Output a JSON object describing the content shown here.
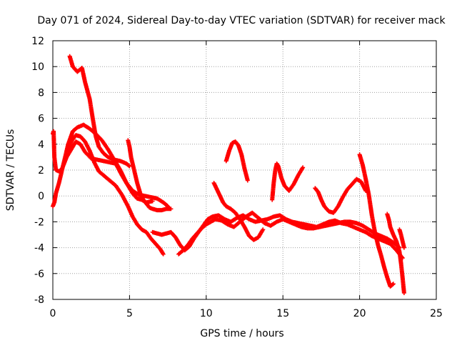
{
  "chart_data": {
    "type": "scatter",
    "title": "Day 071 of 2024, Sidereal Day-to-day VTEC variation (SDTVAR) for receiver mack",
    "xlabel": "GPS time / hours",
    "ylabel": "SDTVAR / TECUs",
    "xlim": [
      0,
      25
    ],
    "ylim": [
      -8,
      12
    ],
    "xticks": [
      0,
      5,
      10,
      15,
      20,
      25
    ],
    "yticks": [
      -8,
      -6,
      -4,
      -2,
      0,
      2,
      4,
      6,
      8,
      10,
      12
    ],
    "xtick_labels": [
      "0",
      "5",
      "10",
      "15",
      "20",
      "25"
    ],
    "ytick_labels": [
      "-8",
      "-6",
      "-4",
      "-2",
      "0",
      "2",
      "4",
      "6",
      "8",
      "10",
      "12"
    ],
    "grid": true,
    "marker": "+",
    "color": "#ff0000",
    "series": [
      {
        "name": "trace-1",
        "x": [
          1.1,
          1.3,
          1.6,
          1.9,
          2.1,
          2.4,
          2.6,
          2.8,
          3.0,
          3.3,
          3.6,
          4.0,
          4.4,
          4.8,
          5.0
        ],
        "y": [
          10.8,
          10.0,
          9.6,
          9.9,
          8.8,
          7.5,
          6.0,
          4.6,
          3.8,
          3.3,
          3.0,
          2.8,
          2.7,
          2.5,
          2.3
        ]
      },
      {
        "name": "trace-2",
        "x": [
          0.0,
          0.1,
          0.2,
          0.4,
          0.6,
          0.8,
          1.0,
          1.3,
          1.6,
          2.0,
          2.4,
          2.8,
          3.2,
          3.6,
          4.0,
          4.4,
          4.8,
          5.2,
          5.6,
          6.0,
          6.4,
          6.8,
          7.2,
          7.5
        ],
        "y": [
          -0.8,
          -0.5,
          0.2,
          1.0,
          2.0,
          3.0,
          4.0,
          5.0,
          5.3,
          5.5,
          5.2,
          4.8,
          4.3,
          3.6,
          2.8,
          2.0,
          1.0,
          0.4,
          0.1,
          0.0,
          -0.1,
          -0.2,
          -0.5,
          -0.8
        ]
      },
      {
        "name": "trace-3",
        "x": [
          0.0,
          0.05,
          0.1,
          0.2,
          0.4,
          0.6,
          0.9,
          1.2,
          1.5,
          1.8,
          2.1,
          2.5,
          2.9,
          3.3,
          3.7,
          4.1,
          4.5,
          4.9,
          5.2,
          5.5,
          5.8,
          6.1,
          6.5
        ],
        "y": [
          4.8,
          5.0,
          3.0,
          2.0,
          1.9,
          2.1,
          3.0,
          3.6,
          4.2,
          4.0,
          3.4,
          2.9,
          2.8,
          2.7,
          2.6,
          2.5,
          1.6,
          0.8,
          0.2,
          -0.2,
          -0.3,
          -0.5,
          -0.4
        ]
      },
      {
        "name": "trace-4",
        "x": [
          1.0,
          1.2,
          1.5,
          1.8,
          2.1,
          2.4,
          2.7,
          3.0,
          3.3,
          3.7,
          4.1,
          4.5,
          4.9,
          5.2,
          5.5,
          5.8,
          6.1,
          6.4,
          6.7,
          7.0,
          7.2
        ],
        "y": [
          3.5,
          4.2,
          4.7,
          4.6,
          4.2,
          3.5,
          2.6,
          1.9,
          1.6,
          1.2,
          0.8,
          0.1,
          -0.8,
          -1.6,
          -2.2,
          -2.6,
          -2.8,
          -3.3,
          -3.7,
          -4.1,
          -4.5
        ]
      },
      {
        "name": "trace-5",
        "x": [
          4.9,
          5.0,
          5.1,
          5.3,
          5.5,
          5.7,
          5.9,
          6.1,
          6.3,
          6.5,
          6.8,
          7.1,
          7.4,
          7.7
        ],
        "y": [
          4.3,
          3.8,
          3.0,
          2.0,
          1.0,
          0.2,
          -0.3,
          -0.6,
          -0.9,
          -1.0,
          -1.1,
          -1.1,
          -1.0,
          -1.0
        ]
      },
      {
        "name": "trace-6",
        "x": [
          6.5,
          6.8,
          7.1,
          7.4,
          7.7,
          8.0,
          8.3,
          8.6,
          8.9,
          9.2,
          9.5,
          9.8,
          10.1,
          10.4,
          10.8,
          11.2,
          11.6,
          12.0,
          12.4,
          12.8,
          13.2,
          13.6,
          14.0,
          14.4,
          14.8,
          15.2,
          15.6,
          16.0,
          16.4,
          16.8,
          17.2,
          17.6,
          18.0,
          18.4,
          18.8,
          19.2,
          19.6,
          20.0,
          20.4,
          20.8,
          21.2,
          21.6,
          22.0,
          22.4,
          22.8
        ],
        "y": [
          -2.8,
          -2.9,
          -3.0,
          -2.9,
          -2.8,
          -3.2,
          -3.8,
          -4.2,
          -3.9,
          -3.3,
          -2.8,
          -2.3,
          -1.8,
          -1.6,
          -1.5,
          -1.8,
          -2.0,
          -1.7,
          -1.5,
          -1.8,
          -2.0,
          -1.9,
          -1.8,
          -1.6,
          -1.5,
          -1.8,
          -2.0,
          -2.1,
          -2.2,
          -2.3,
          -2.4,
          -2.2,
          -2.0,
          -1.9,
          -2.1,
          -2.2,
          -2.4,
          -2.6,
          -2.8,
          -3.1,
          -3.3,
          -3.5,
          -3.7,
          -4.2,
          -4.8
        ]
      },
      {
        "name": "trace-7",
        "x": [
          8.2,
          8.5,
          8.8,
          9.1,
          9.4,
          9.7,
          10.0,
          10.3,
          10.6,
          11.0,
          11.4,
          11.8,
          12.2,
          12.6,
          13.0,
          13.4,
          13.8,
          14.2,
          14.6,
          15.0,
          15.4,
          15.8,
          16.2,
          16.6,
          17.0,
          17.4,
          17.8,
          18.2,
          18.6,
          19.0,
          19.4,
          19.8,
          20.2,
          20.6,
          21.0,
          21.4,
          21.8,
          22.2,
          22.6
        ],
        "y": [
          -4.5,
          -4.2,
          -3.8,
          -3.3,
          -2.9,
          -2.5,
          -2.2,
          -2.0,
          -1.8,
          -1.9,
          -2.2,
          -2.4,
          -2.0,
          -1.6,
          -1.3,
          -1.7,
          -2.1,
          -2.3,
          -2.0,
          -1.8,
          -2.0,
          -2.2,
          -2.4,
          -2.5,
          -2.5,
          -2.4,
          -2.3,
          -2.2,
          -2.1,
          -2.0,
          -2.0,
          -2.1,
          -2.3,
          -2.6,
          -2.9,
          -3.1,
          -3.3,
          -3.6,
          -4.0
        ]
      },
      {
        "name": "trace-8",
        "x": [
          10.5,
          10.7,
          10.9,
          11.1,
          11.3,
          11.6,
          11.9,
          12.2,
          12.5,
          12.8,
          13.1,
          13.4,
          13.7
        ],
        "y": [
          1.0,
          0.5,
          0.0,
          -0.5,
          -0.8,
          -1.0,
          -1.3,
          -1.8,
          -2.4,
          -3.1,
          -3.4,
          -3.2,
          -2.6
        ]
      },
      {
        "name": "trace-9",
        "x": [
          11.3,
          11.5,
          11.7,
          11.9,
          12.1,
          12.3,
          12.5,
          12.7
        ],
        "y": [
          2.7,
          3.5,
          4.1,
          4.2,
          3.9,
          3.2,
          2.1,
          1.2
        ]
      },
      {
        "name": "trace-10",
        "x": [
          14.3,
          14.4,
          14.5,
          14.6,
          14.7,
          14.9,
          15.1,
          15.4,
          15.7,
          16.0,
          16.3
        ],
        "y": [
          -0.3,
          1.0,
          2.0,
          2.5,
          2.3,
          1.4,
          0.8,
          0.4,
          0.9,
          1.6,
          2.2
        ]
      },
      {
        "name": "trace-11",
        "x": [
          17.1,
          17.3,
          17.5,
          17.7,
          18.0,
          18.3,
          18.6,
          18.9,
          19.2,
          19.5,
          19.8,
          20.1,
          20.4
        ],
        "y": [
          0.6,
          0.3,
          -0.3,
          -0.8,
          -1.2,
          -1.3,
          -0.8,
          -0.1,
          0.5,
          0.9,
          1.3,
          1.1,
          0.4
        ]
      },
      {
        "name": "trace-12",
        "x": [
          20.0,
          20.2,
          20.4,
          20.6,
          20.8,
          21.0,
          21.2,
          21.4,
          21.6,
          21.8,
          22.0,
          22.2
        ],
        "y": [
          3.2,
          2.4,
          1.3,
          0.1,
          -1.5,
          -2.8,
          -3.8,
          -4.6,
          -5.5,
          -6.3,
          -7.0,
          -6.8
        ]
      },
      {
        "name": "trace-13",
        "x": [
          21.8,
          21.9,
          22.0,
          22.2,
          22.4,
          22.6,
          22.7,
          22.8,
          22.9
        ],
        "y": [
          -1.4,
          -1.8,
          -2.4,
          -3.0,
          -3.5,
          -4.3,
          -5.2,
          -6.3,
          -7.5
        ]
      },
      {
        "name": "trace-14",
        "x": [
          22.6,
          22.7,
          22.8,
          22.9
        ],
        "y": [
          -2.6,
          -3.0,
          -3.5,
          -4.0
        ]
      }
    ]
  }
}
